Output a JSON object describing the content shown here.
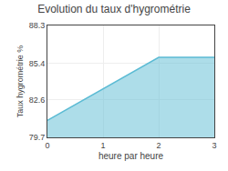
{
  "chart_data": {
    "type": "area",
    "title": "Evolution du taux d'hygrométrie",
    "xlabel": "heure par heure",
    "ylabel": "Taux hygrométrie %",
    "x": [
      0,
      2,
      3
    ],
    "values": [
      81.0,
      85.85,
      85.85
    ],
    "color": "#5bbbd4",
    "xlim": [
      0,
      3
    ],
    "ylim": [
      79.7,
      88.3
    ],
    "xticks": [
      0,
      1,
      2,
      3
    ],
    "yticks": [
      79.7,
      82.6,
      85.4,
      88.3
    ],
    "grid": true
  }
}
